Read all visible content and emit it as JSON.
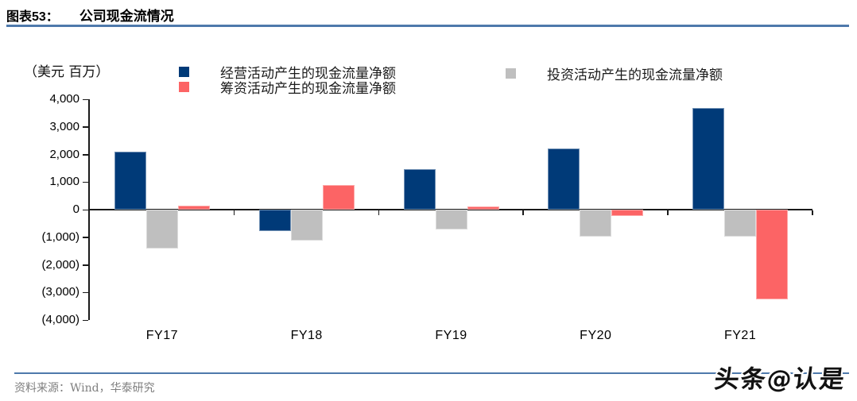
{
  "header": {
    "figure_label": "图表53：",
    "title": "公司现金流情况"
  },
  "chart_data": {
    "type": "bar",
    "title": "公司现金流情况",
    "unit_label": "（美元 百万）",
    "categories": [
      "FY17",
      "FY18",
      "FY19",
      "FY20",
      "FY21"
    ],
    "series": [
      {
        "name": "经营活动产生的现金流量净额",
        "color": "#003a78",
        "values": [
          2100,
          -780,
          1480,
          2230,
          3680
        ]
      },
      {
        "name": "投资活动产生的现金流量净额",
        "color": "#bfbfbf",
        "values": [
          -1400,
          -1120,
          -720,
          -980,
          -980
        ]
      },
      {
        "name": "筹资活动产生的现金流量净额",
        "color": "#fc6465",
        "values": [
          140,
          880,
          120,
          -230,
          -3250
        ]
      }
    ],
    "ylim": [
      -4000,
      4000
    ],
    "ytick_step": 1000,
    "ytick_labels": [
      "4,000",
      "3,000",
      "2,000",
      "1,000",
      "0",
      "(1,000)",
      "(2,000)",
      "(3,000)",
      "(4,000)"
    ],
    "legend_position": "top",
    "grid": false
  },
  "footer": {
    "source": "资料来源：Wind，华泰研究",
    "watermark": "头条@认是"
  },
  "colors": {
    "accent_line": "#4e79ab",
    "axis": "#1a1a1a",
    "source_text": "#7f7f7f"
  }
}
